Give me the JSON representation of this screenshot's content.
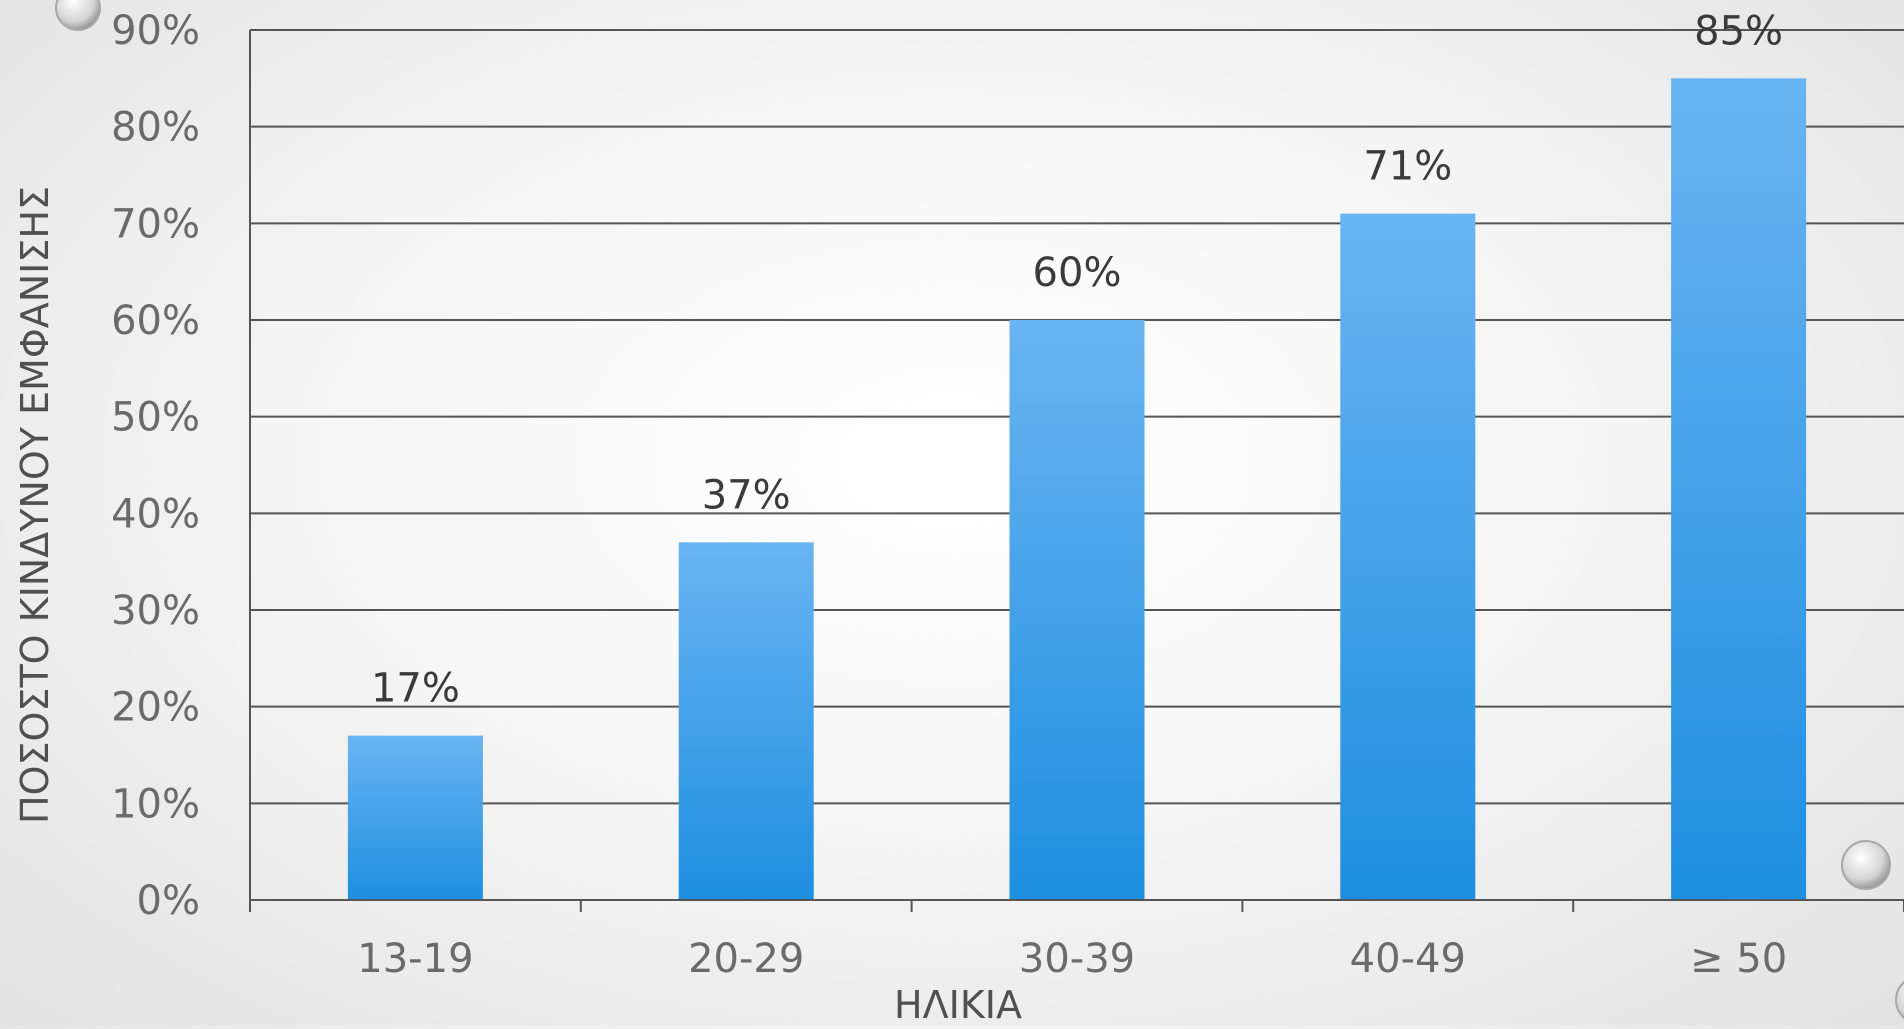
{
  "chart_data": {
    "type": "bar",
    "categories": [
      "13-19",
      "20-29",
      "30-39",
      "40-49",
      "≥ 50"
    ],
    "values": [
      17,
      37,
      60,
      71,
      85
    ],
    "data_labels": [
      "17%",
      "37%",
      "60%",
      "71%",
      "85%"
    ],
    "title": "",
    "xlabel": "ΗΛΙΚΙΑ",
    "ylabel": "ΠΟΣΟΣΤΟ ΚΙΝΔΥΝΟΥ ΕΜΦΑΝΙΣΗΣ",
    "ylim": [
      0,
      90
    ],
    "yticks": [
      0,
      10,
      20,
      30,
      40,
      50,
      60,
      70,
      80,
      90
    ],
    "ytick_labels": [
      "0%",
      "10%",
      "20%",
      "30%",
      "40%",
      "50%",
      "60%",
      "70%",
      "80%",
      "90%"
    ],
    "grid": true,
    "legend": "none",
    "colors": {
      "bar_top": "#6ab4f2",
      "bar_bottom": "#1e8fe0",
      "gridline": "#555555",
      "axis": "#555555"
    }
  }
}
